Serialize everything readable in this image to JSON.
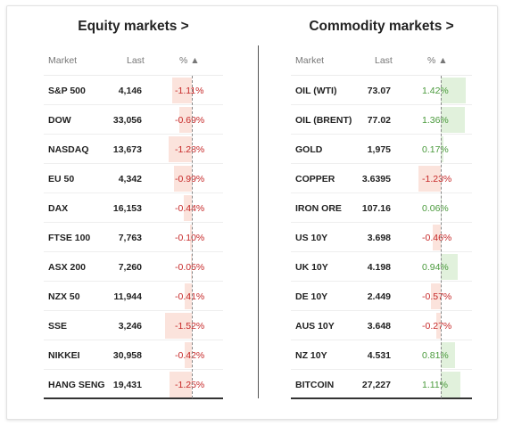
{
  "equity": {
    "title": "Equity markets >",
    "headers": {
      "market": "Market",
      "last": "Last",
      "pct": "% ▲"
    },
    "rows": [
      {
        "market": "S&P 500",
        "last": "4,146",
        "pct": "-1.11%",
        "value": -1.11
      },
      {
        "market": "DOW",
        "last": "33,056",
        "pct": "-0.69%",
        "value": -0.69
      },
      {
        "market": "NASDAQ",
        "last": "13,673",
        "pct": "-1.28%",
        "value": -1.28
      },
      {
        "market": "EU 50",
        "last": "4,342",
        "pct": "-0.99%",
        "value": -0.99
      },
      {
        "market": "DAX",
        "last": "16,153",
        "pct": "-0.44%",
        "value": -0.44
      },
      {
        "market": "FTSE 100",
        "last": "7,763",
        "pct": "-0.10%",
        "value": -0.1
      },
      {
        "market": "ASX 200",
        "last": "7,260",
        "pct": "-0.05%",
        "value": -0.05
      },
      {
        "market": "NZX 50",
        "last": "11,944",
        "pct": "-0.41%",
        "value": -0.41
      },
      {
        "market": "SSE",
        "last": "3,246",
        "pct": "-1.52%",
        "value": -1.52
      },
      {
        "market": "NIKKEI",
        "last": "30,958",
        "pct": "-0.42%",
        "value": -0.42
      },
      {
        "market": "HANG SENG",
        "last": "19,431",
        "pct": "-1.25%",
        "value": -1.25
      }
    ]
  },
  "commodity": {
    "title": "Commodity markets >",
    "headers": {
      "market": "Market",
      "last": "Last",
      "pct": "% ▲"
    },
    "rows": [
      {
        "market": "OIL (WTI)",
        "last": "73.07",
        "pct": "1.42%",
        "value": 1.42
      },
      {
        "market": "OIL (BRENT)",
        "last": "77.02",
        "pct": "1.36%",
        "value": 1.36
      },
      {
        "market": "GOLD",
        "last": "1,975",
        "pct": "0.17%",
        "value": 0.17
      },
      {
        "market": "COPPER",
        "last": "3.6395",
        "pct": "-1.23%",
        "value": -1.23
      },
      {
        "market": "IRON ORE",
        "last": "107.16",
        "pct": "0.06%",
        "value": 0.06
      },
      {
        "market": "US 10Y",
        "last": "3.698",
        "pct": "-0.46%",
        "value": -0.46
      },
      {
        "market": "UK 10Y",
        "last": "4.198",
        "pct": "0.94%",
        "value": 0.94
      },
      {
        "market": "DE 10Y",
        "last": "2.449",
        "pct": "-0.57%",
        "value": -0.57
      },
      {
        "market": "AUS 10Y",
        "last": "3.648",
        "pct": "-0.27%",
        "value": -0.27
      },
      {
        "market": "NZ 10Y",
        "last": "4.531",
        "pct": "0.81%",
        "value": 0.81
      },
      {
        "market": "BITCOIN",
        "last": "27,227",
        "pct": "1.11%",
        "value": 1.11
      }
    ]
  }
}
